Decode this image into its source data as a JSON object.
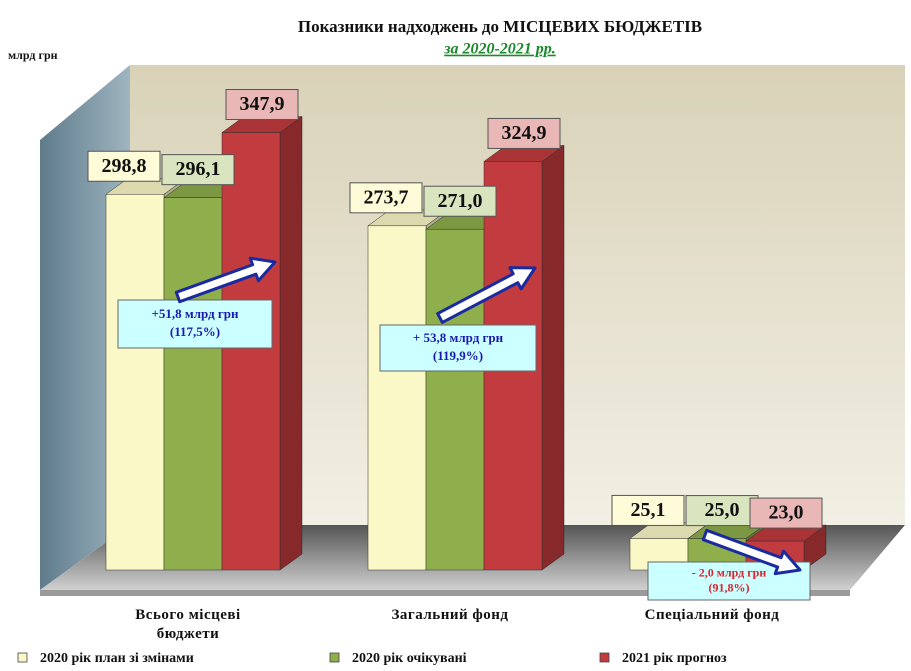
{
  "chart_data": {
    "type": "bar3d",
    "title": "Показники надходжень до МІСЦЕВИХ БЮДЖЕТІВ",
    "subtitle": "за 2020-2021 рр.",
    "y_label": "млрд грн",
    "categories": [
      "Всього місцеві бюджети",
      "Загальний фонд",
      "Спеціальний фонд"
    ],
    "series": [
      {
        "name": "2020 рік план зі змінами",
        "color": "#fbf8c8",
        "label_color": "#fdfbd8",
        "values": [
          298.8,
          273.7,
          25.1
        ],
        "value_labels": [
          "298,8",
          "273,7",
          "25,1"
        ]
      },
      {
        "name": "2020 рік очікувані",
        "color": "#8fae4c",
        "label_color": "#d9e5bf",
        "values": [
          296.1,
          271.0,
          25.0
        ],
        "value_labels": [
          "296,1",
          "271,0",
          "25,0"
        ]
      },
      {
        "name": "2021 рік прогноз",
        "color": "#c23b3e",
        "label_color": "#e8b7b6",
        "values": [
          347.9,
          324.9,
          23.0
        ],
        "value_labels": [
          "347,9",
          "324,9",
          "23,0"
        ]
      }
    ],
    "ylim": [
      0,
      400
    ],
    "annotations": [
      {
        "lines": [
          "+51,8 млрд грн",
          "(117,5%)"
        ],
        "color": "#1a1ab0"
      },
      {
        "lines": [
          "+ 53,8 млрд грн",
          "(119,9%)"
        ],
        "color": "#1a1ab0"
      },
      {
        "lines": [
          "- 2,0 млрд грн",
          "(91,8%)"
        ],
        "color": "#e0202a"
      }
    ]
  }
}
